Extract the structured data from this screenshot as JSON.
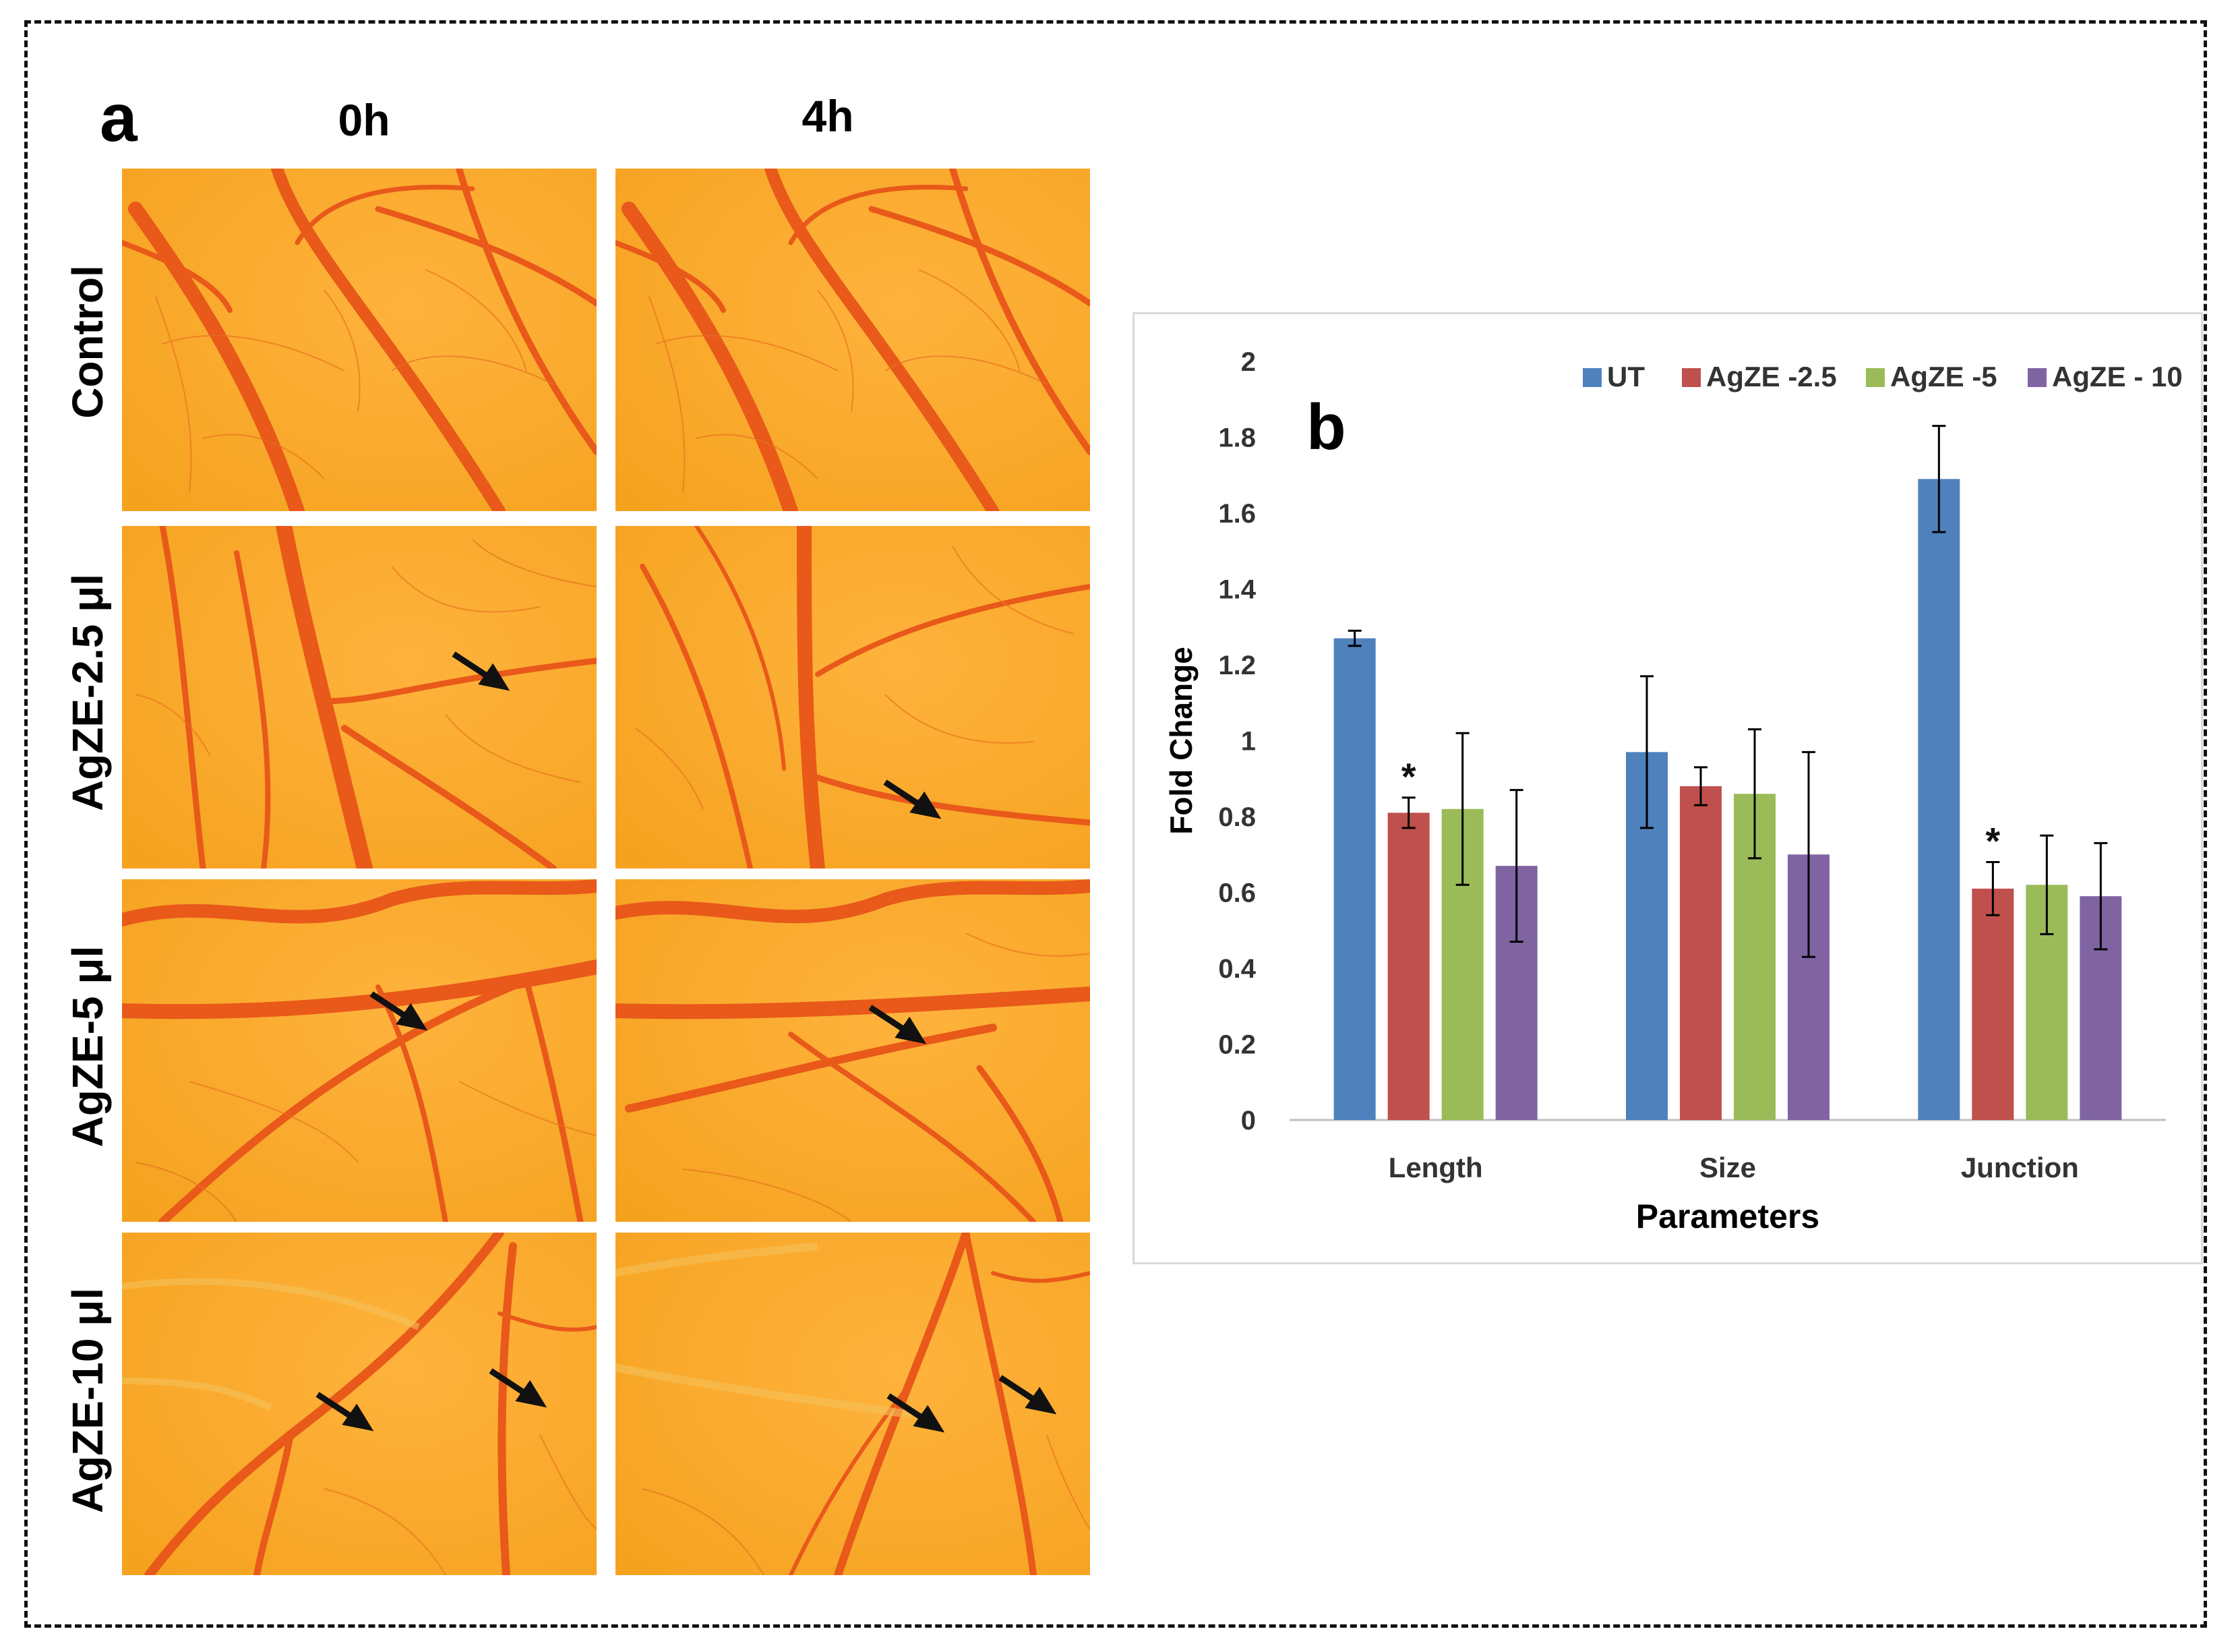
{
  "figure": {
    "panel_a_label": "a",
    "panel_b_label": "b",
    "columns": [
      "0h",
      "4h"
    ],
    "rows": [
      "Control",
      "AgZE-2.5 μl",
      "AgZE-5 μl",
      "AgZE-10 μl"
    ]
  },
  "chart_data": {
    "type": "bar",
    "title": "",
    "xlabel": "Parameters",
    "ylabel": "Fold Change",
    "ylim": [
      0,
      2
    ],
    "yticks": [
      "0",
      "0.2",
      "0.4",
      "0.6",
      "0.8",
      "1",
      "1.2",
      "1.4",
      "1.6",
      "1.8",
      "2"
    ],
    "categories": [
      "Length",
      "Size",
      "Junction"
    ],
    "legend_position": "top-right",
    "series": [
      {
        "name": "UT",
        "color": "#4f81bd",
        "values": [
          1.27,
          0.97,
          1.69
        ],
        "errors": [
          0.02,
          0.2,
          0.14
        ]
      },
      {
        "name": "AgZE -2.5",
        "color": "#c0504d",
        "values": [
          0.81,
          0.88,
          0.61
        ],
        "errors": [
          0.04,
          0.05,
          0.07
        ]
      },
      {
        "name": "AgZE -5",
        "color": "#9bbb59",
        "values": [
          0.82,
          0.86,
          0.62
        ],
        "errors": [
          0.2,
          0.17,
          0.13
        ]
      },
      {
        "name": "AgZE - 10",
        "color": "#8064a2",
        "values": [
          0.67,
          0.7,
          0.59
        ],
        "errors": [
          0.2,
          0.27,
          0.14
        ]
      }
    ],
    "annotations": [
      {
        "text": "*",
        "category": "Length",
        "series": "AgZE -2.5"
      },
      {
        "text": "*",
        "category": "Junction",
        "series": "AgZE -2.5"
      }
    ]
  }
}
